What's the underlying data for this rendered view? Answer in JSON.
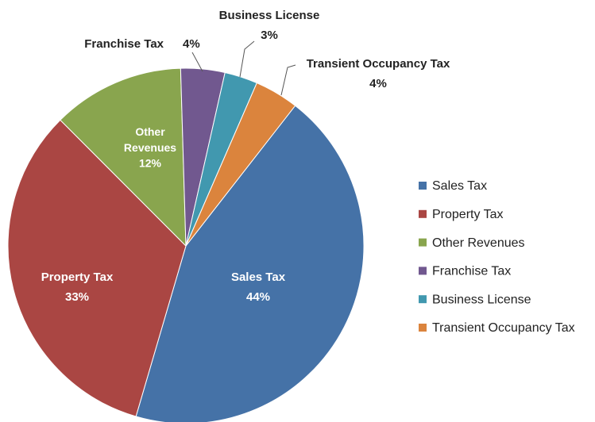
{
  "chart_data": {
    "type": "pie",
    "categories": [
      "Sales Tax",
      "Property Tax",
      "Other Revenues",
      "Franchise Tax",
      "Business License",
      "Transient Occupancy Tax"
    ],
    "values": [
      44,
      33,
      12,
      4,
      3,
      4
    ],
    "value_labels": [
      "44%",
      "33%",
      "12%",
      "4%",
      "3%",
      "4%"
    ],
    "colors": [
      "#4572a7",
      "#aa4643",
      "#89a54e",
      "#71588f",
      "#4198af",
      "#db843d"
    ],
    "legend": "right"
  }
}
